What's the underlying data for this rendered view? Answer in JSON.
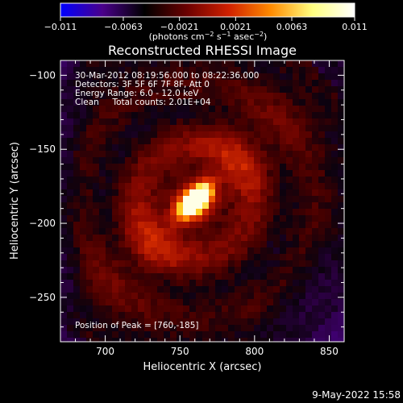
{
  "chart_data": {
    "type": "heatmap",
    "title": "Reconstructed RHESSI Image",
    "xlabel": "Heliocentric X (arcsec)",
    "ylabel": "Heliocentric Y (arcsec)",
    "xlim": [
      670,
      860
    ],
    "ylim": [
      -280,
      -90
    ],
    "x_ticks": [
      700,
      750,
      800,
      850
    ],
    "y_ticks": [
      -100,
      -150,
      -200,
      -250
    ],
    "colorbar": {
      "range": [
        -0.011,
        0.011
      ],
      "ticks": [
        -0.011,
        -0.0063,
        -0.0021,
        0.0021,
        0.0063,
        0.011
      ],
      "tick_labels": [
        "-0.011",
        "-0.0063",
        "-0.0021",
        "0.0021",
        "0.0063",
        "0.011"
      ],
      "unit_label": "(photons cm",
      "unit_parts": [
        "(photons cm",
        "-2",
        " s",
        "-1",
        " asec",
        "-2",
        ")"
      ],
      "colormap": [
        "#0000ff",
        "#4a008a",
        "#000000",
        "#6a0000",
        "#d02000",
        "#ff8a00",
        "#ffff80",
        "#ffffff"
      ]
    },
    "annotations": [
      "30-Mar-2012 08:19:56.000 to 08:22:36.000",
      "Detectors: 3F 5F 6F 7F 8F, Att 0",
      "Energy Range: 6.0 - 12.0 keV",
      "Clean     Total counts: 2.01E+04"
    ],
    "peak_label": "Position of Peak = [760,-185]",
    "peak": {
      "x": 760,
      "y": -185
    },
    "source_axis_angle_deg": 45,
    "grid": false
  },
  "footer": {
    "date": "9-May-2022 15:58"
  }
}
